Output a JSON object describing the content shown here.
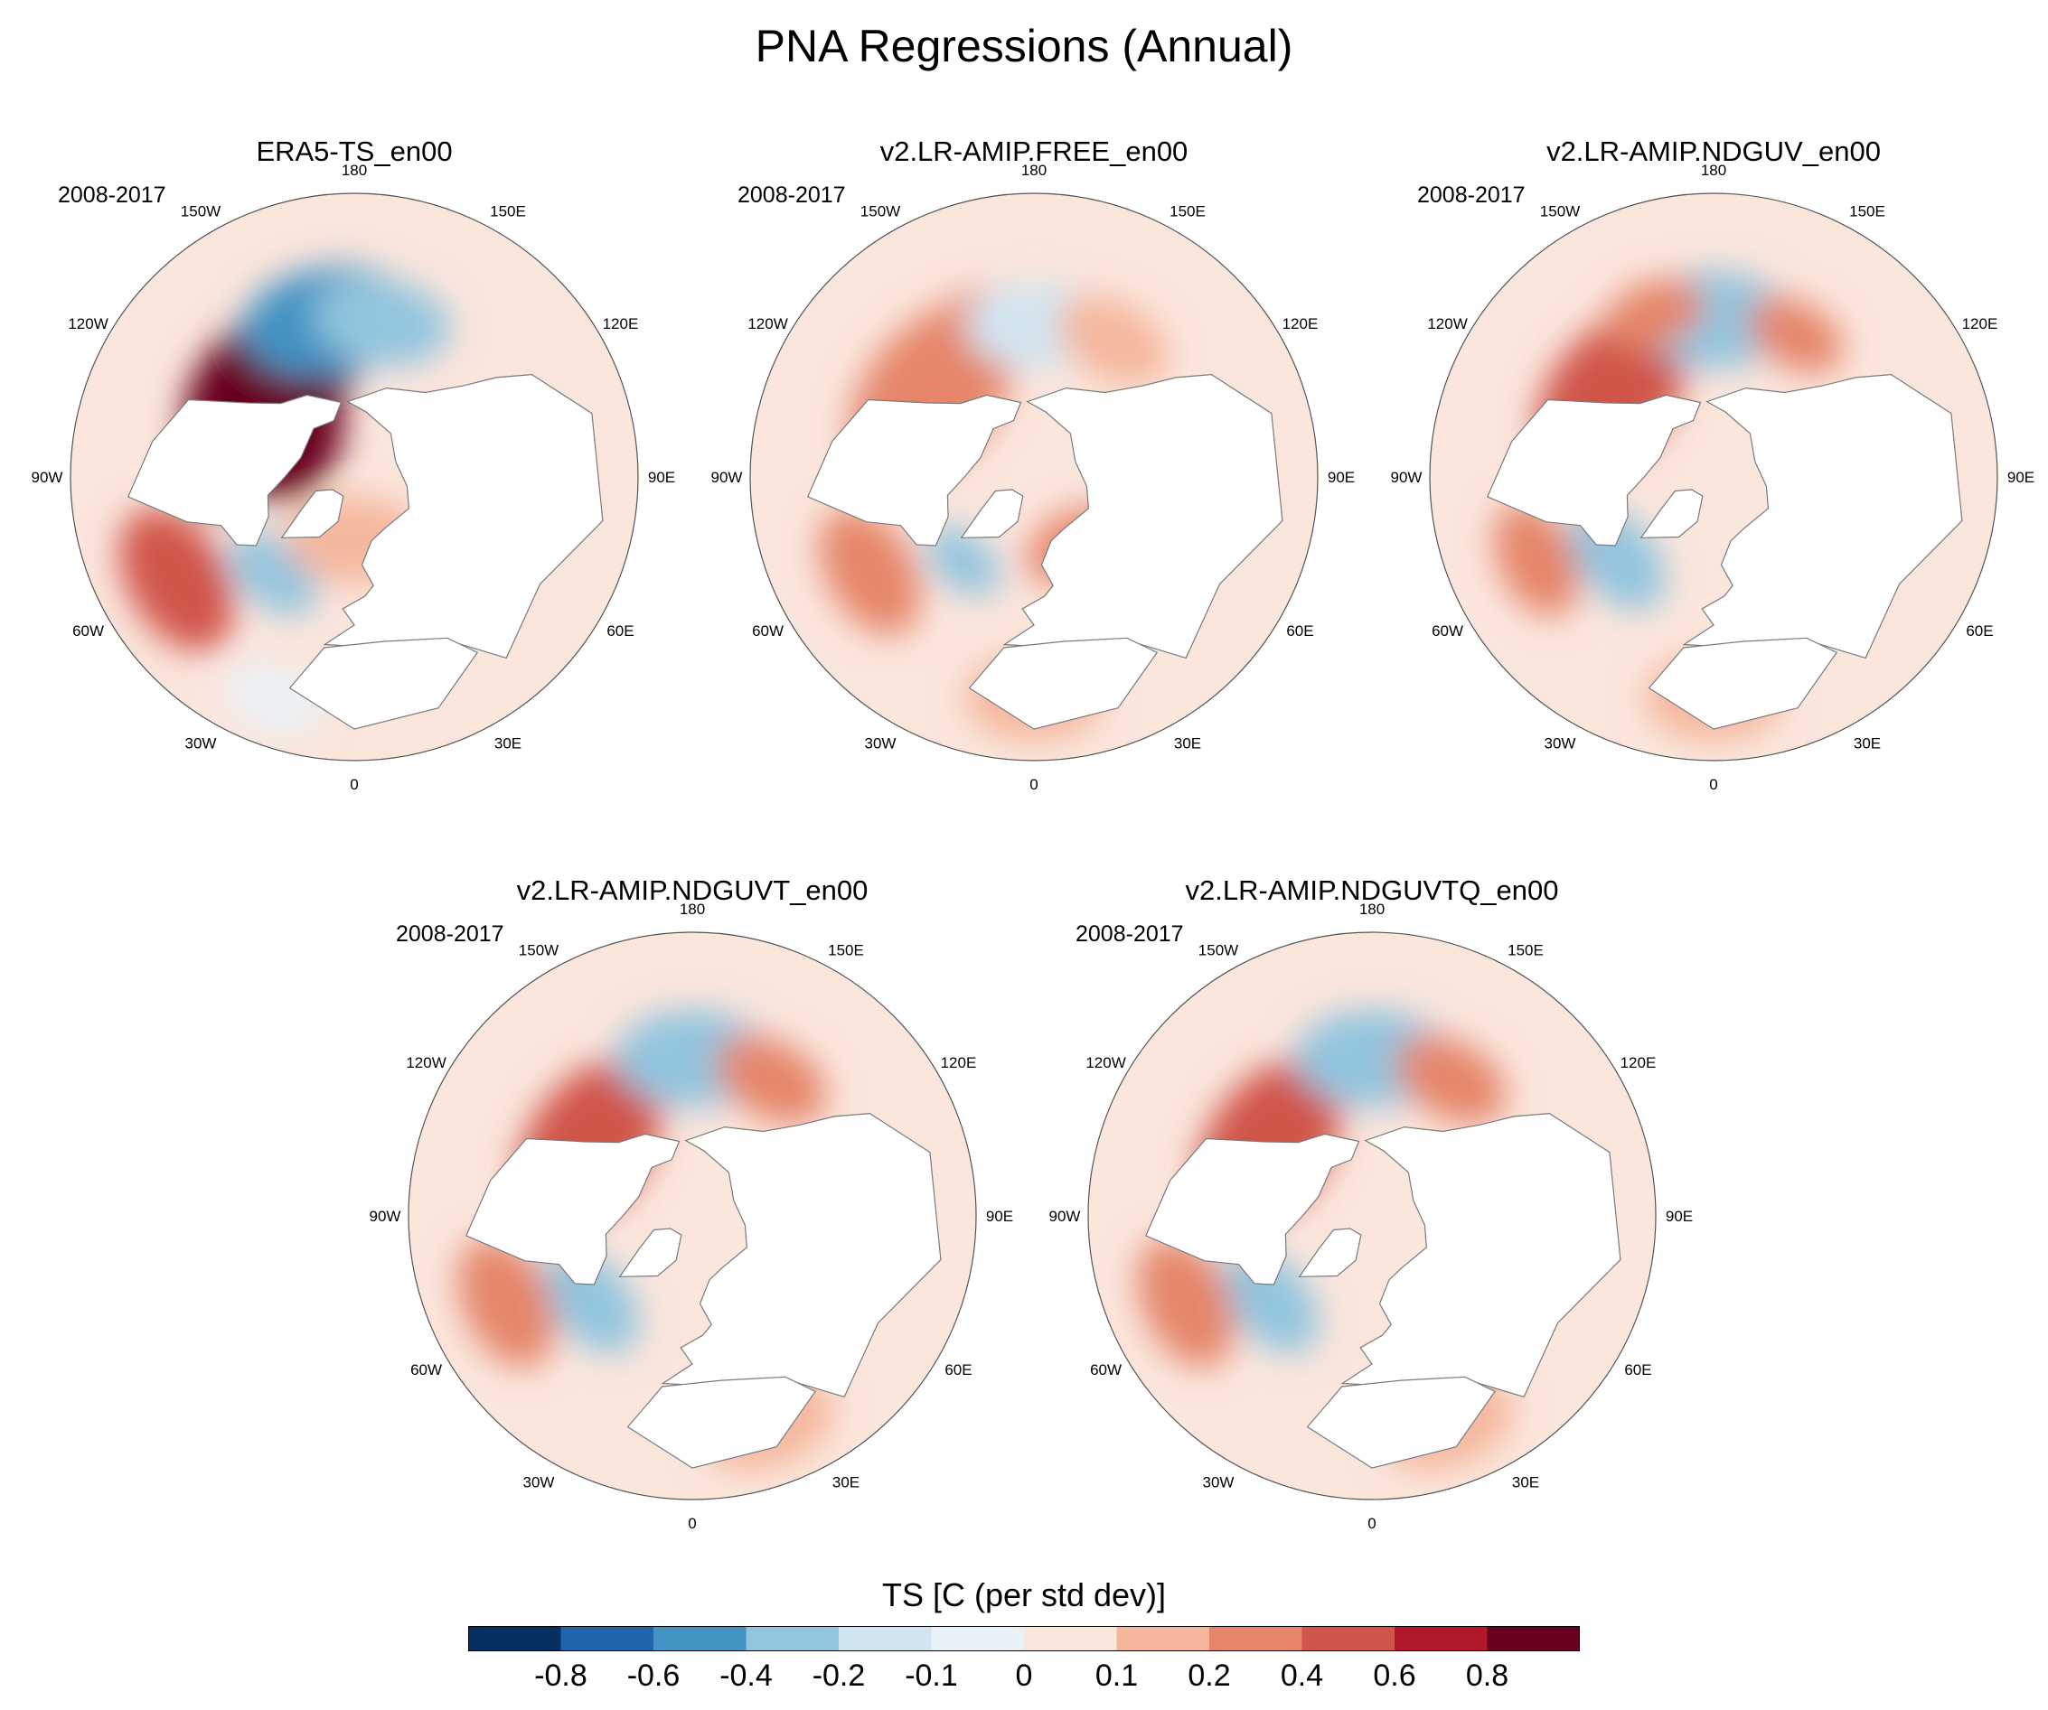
{
  "chart_data": {
    "type": "contour_map",
    "projection": "north polar stereographic",
    "title": "PNA Regressions (Annual)",
    "colorbar": {
      "label": "TS [C (per std dev)]",
      "levels": [
        -0.8,
        -0.6,
        -0.4,
        -0.2,
        -0.1,
        0,
        0.1,
        0.2,
        0.4,
        0.6,
        0.8
      ],
      "tick_labels": [
        "-0.8",
        "-0.6",
        "-0.4",
        "-0.2",
        "-0.1",
        "0",
        "0.1",
        "0.2",
        "0.4",
        "0.6",
        "0.8"
      ],
      "colors": [
        "#053061",
        "#2166ac",
        "#4393c3",
        "#92c5de",
        "#d1e5f0",
        "#ebf2f7",
        "#fbe6dc",
        "#f4b79c",
        "#e5866a",
        "#d0554a",
        "#b2182b",
        "#67001f"
      ]
    },
    "longitude_labels": [
      "180",
      "150E",
      "120E",
      "90E",
      "60E",
      "30E",
      "0",
      "30W",
      "60W",
      "90W",
      "120W",
      "150W"
    ],
    "panels": [
      {
        "title": "ERA5-TS_en00",
        "period": "2008-2017",
        "anomalies": [
          {
            "lon": -140,
            "lat": 50,
            "value": 0.85,
            "size": 1.2
          },
          {
            "lon": -110,
            "lat": 50,
            "value": 0.9,
            "size": 0.9
          },
          {
            "lon": -120,
            "lat": 70,
            "value": 0.8,
            "size": 0.7
          },
          {
            "lon": -170,
            "lat": 40,
            "value": -0.5,
            "size": 1.0
          },
          {
            "lon": 170,
            "lat": 40,
            "value": -0.4,
            "size": 0.8
          },
          {
            "lon": -60,
            "lat": 25,
            "value": 0.4,
            "size": 0.9
          },
          {
            "lon": -40,
            "lat": 50,
            "value": -0.4,
            "size": 0.6
          },
          {
            "lon": -20,
            "lat": 15,
            "value": -0.1,
            "size": 0.6
          },
          {
            "lon": 0,
            "lat": 70,
            "value": 0.1,
            "size": 0.8
          }
        ]
      },
      {
        "title": "v2.LR-AMIP.FREE_en00",
        "period": "2008-2017",
        "anomalies": [
          {
            "lon": -130,
            "lat": 48,
            "value": 0.35,
            "size": 1.2
          },
          {
            "lon": -160,
            "lat": 38,
            "value": 0.3,
            "size": 0.6
          },
          {
            "lon": 180,
            "lat": 42,
            "value": -0.2,
            "size": 0.8
          },
          {
            "lon": 150,
            "lat": 40,
            "value": 0.15,
            "size": 0.7
          },
          {
            "lon": -60,
            "lat": 30,
            "value": 0.3,
            "size": 0.8
          },
          {
            "lon": -40,
            "lat": 55,
            "value": -0.3,
            "size": 0.5
          },
          {
            "lon": 30,
            "lat": 65,
            "value": 0.2,
            "size": 0.6
          },
          {
            "lon": 0,
            "lat": 20,
            "value": 0.1,
            "size": 0.8
          }
        ]
      },
      {
        "title": "v2.LR-AMIP.NDGUV_en00",
        "period": "2008-2017",
        "anomalies": [
          {
            "lon": -130,
            "lat": 48,
            "value": 0.45,
            "size": 1.1
          },
          {
            "lon": 180,
            "lat": 40,
            "value": -0.35,
            "size": 0.9
          },
          {
            "lon": -160,
            "lat": 35,
            "value": 0.2,
            "size": 0.6
          },
          {
            "lon": 150,
            "lat": 38,
            "value": 0.2,
            "size": 0.6
          },
          {
            "lon": -50,
            "lat": 50,
            "value": -0.3,
            "size": 0.7
          },
          {
            "lon": -65,
            "lat": 28,
            "value": 0.2,
            "size": 0.7
          },
          {
            "lon": 0,
            "lat": 20,
            "value": 0.1,
            "size": 0.8
          }
        ]
      },
      {
        "title": "v2.LR-AMIP.NDGUVT_en00",
        "period": "2008-2017",
        "anomalies": [
          {
            "lon": -125,
            "lat": 50,
            "value": 0.5,
            "size": 1.1
          },
          {
            "lon": 180,
            "lat": 40,
            "value": -0.35,
            "size": 0.9
          },
          {
            "lon": 150,
            "lat": 40,
            "value": 0.2,
            "size": 0.7
          },
          {
            "lon": -50,
            "lat": 48,
            "value": -0.35,
            "size": 0.7
          },
          {
            "lon": -65,
            "lat": 25,
            "value": 0.3,
            "size": 0.8
          },
          {
            "lon": 20,
            "lat": 20,
            "value": 0.15,
            "size": 0.8
          }
        ]
      },
      {
        "title": "v2.LR-AMIP.NDGUVTQ_en00",
        "period": "2008-2017",
        "anomalies": [
          {
            "lon": -125,
            "lat": 50,
            "value": 0.5,
            "size": 1.1
          },
          {
            "lon": 180,
            "lat": 40,
            "value": -0.35,
            "size": 0.9
          },
          {
            "lon": 150,
            "lat": 40,
            "value": 0.2,
            "size": 0.7
          },
          {
            "lon": -50,
            "lat": 48,
            "value": -0.35,
            "size": 0.7
          },
          {
            "lon": -65,
            "lat": 25,
            "value": 0.3,
            "size": 0.8
          },
          {
            "lon": 20,
            "lat": 20,
            "value": 0.15,
            "size": 0.8
          }
        ]
      }
    ]
  }
}
